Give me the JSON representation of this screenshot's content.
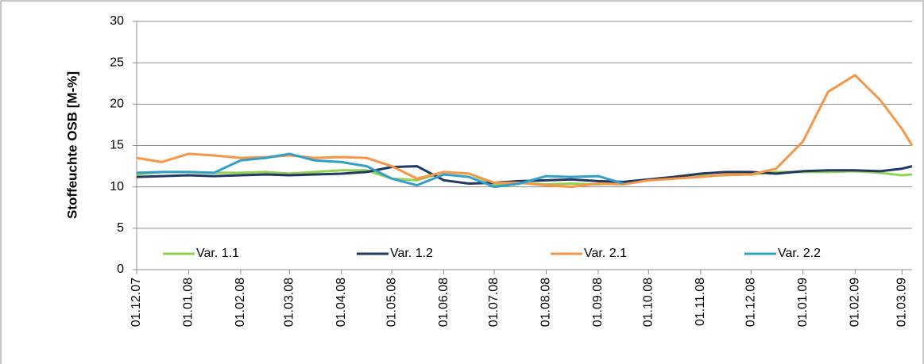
{
  "chart_data": {
    "type": "line",
    "y_label": "Stoffeuchte OSB [M-%]",
    "x": [
      "01.12.07",
      "16.12.07",
      "01.01.08",
      "16.01.08",
      "01.02.08",
      "16.02.08",
      "01.03.08",
      "16.03.08",
      "01.04.08",
      "16.04.08",
      "01.05.08",
      "16.05.08",
      "01.06.08",
      "16.06.08",
      "01.07.08",
      "16.07.08",
      "01.08.08",
      "16.08.08",
      "01.09.08",
      "16.09.08",
      "01.10.08",
      "16.10.08",
      "01.11.08",
      "16.11.08",
      "01.12.08",
      "16.12.08",
      "01.01.09",
      "16.01.09",
      "01.02.09",
      "16.02.09",
      "01.03.09",
      "07.03.09"
    ],
    "series": [
      {
        "name": "Var. 1.1",
        "color": "#92d050",
        "values": [
          11.5,
          11.8,
          11.8,
          11.7,
          11.7,
          11.8,
          11.6,
          11.8,
          12,
          12,
          11,
          10.8,
          11.8,
          11.6,
          10.3,
          10.5,
          10.3,
          10.4,
          10.3,
          10.5,
          10.8,
          11,
          11.3,
          11.4,
          11.5,
          11.8,
          11.8,
          11.8,
          11.9,
          11.7,
          11.4,
          11.5
        ]
      },
      {
        "name": "Var. 1.2",
        "color": "#1f3864",
        "values": [
          11.2,
          11.3,
          11.4,
          11.3,
          11.4,
          11.5,
          11.4,
          11.5,
          11.6,
          11.8,
          12.4,
          12.5,
          10.8,
          10.4,
          10.5,
          10.7,
          10.8,
          10.9,
          10.7,
          10.6,
          10.9,
          11.2,
          11.6,
          11.8,
          11.8,
          11.6,
          11.9,
          12,
          12,
          11.9,
          12.2,
          12.5
        ]
      },
      {
        "name": "Var. 2.1",
        "color": "#f79646",
        "values": [
          13.5,
          13,
          14,
          13.8,
          13.5,
          13.6,
          13.8,
          13.5,
          13.6,
          13.5,
          12.5,
          11,
          11.8,
          11.6,
          10.5,
          10.5,
          10.2,
          10,
          10.4,
          10.3,
          10.8,
          11,
          11.2,
          11.5,
          11.5,
          12.2,
          15.5,
          21.5,
          23.5,
          20.5,
          17,
          15
        ]
      },
      {
        "name": "Var. 2.2",
        "color": "#31a0c8",
        "values": [
          11.7,
          11.8,
          11.8,
          11.7,
          13.2,
          13.5,
          14,
          13.2,
          13,
          12.5,
          11,
          10.2,
          11.5,
          11.2,
          10,
          10.4,
          11.3,
          11.2,
          11.3,
          10.4,
          null,
          null,
          null,
          null,
          null,
          null,
          null,
          null,
          null,
          null,
          null,
          null
        ]
      }
    ],
    "xlim": [
      "01.12.07",
      "07.03.09"
    ],
    "xticks": [
      "01.12.07",
      "01.01.08",
      "01.02.08",
      "01.03.08",
      "01.04.08",
      "01.05.08",
      "01.06.08",
      "01.07.08",
      "01.08.08",
      "01.09.08",
      "01.10.08",
      "01.11.08",
      "01.12.08",
      "01.01.09",
      "01.02.09",
      "01.03.09"
    ],
    "ylim": [
      0,
      30
    ],
    "yticks": [
      0,
      5,
      10,
      15,
      20,
      25,
      30
    ],
    "grid": true,
    "legend": "bottom"
  }
}
